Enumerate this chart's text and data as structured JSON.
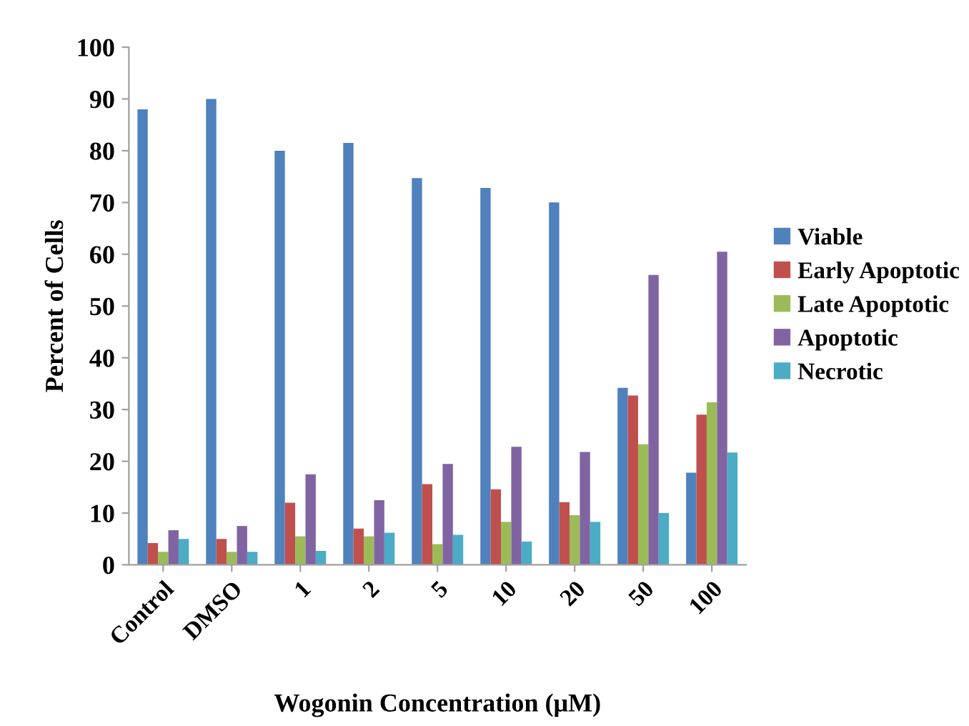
{
  "chart_data": {
    "type": "bar",
    "xlabel": "Wogonin Concentration (μM)",
    "ylabel": "Percent of Cells",
    "categories": [
      "Control",
      "DMSO",
      "1",
      "2",
      "5",
      "10",
      "20",
      "50",
      "100"
    ],
    "series": [
      {
        "name": "Viable",
        "color": "#4f81bd",
        "values": [
          88,
          90,
          80,
          81.5,
          74.7,
          72.8,
          70,
          34.2,
          17.8
        ]
      },
      {
        "name": "Early Apoptotic",
        "color": "#c0504d",
        "values": [
          4.2,
          5,
          12,
          7,
          15.6,
          14.6,
          12.1,
          32.7,
          29
        ]
      },
      {
        "name": "Late Apoptotic",
        "color": "#9bbb59",
        "values": [
          2.5,
          2.5,
          5.5,
          5.5,
          4,
          8.3,
          9.6,
          23.3,
          31.4
        ]
      },
      {
        "name": "Apoptotic",
        "color": "#8064a2",
        "values": [
          6.7,
          7.5,
          17.5,
          12.5,
          19.5,
          22.8,
          21.8,
          56,
          60.5
        ]
      },
      {
        "name": "Necrotic",
        "color": "#4bacc6",
        "values": [
          5,
          2.5,
          2.7,
          6.2,
          5.8,
          4.5,
          8.3,
          10,
          21.7
        ]
      }
    ],
    "ylim": [
      0,
      100
    ],
    "yticks": [
      0,
      10,
      20,
      30,
      40,
      50,
      60,
      70,
      80,
      90,
      100
    ],
    "grid": false,
    "legend": "right"
  }
}
